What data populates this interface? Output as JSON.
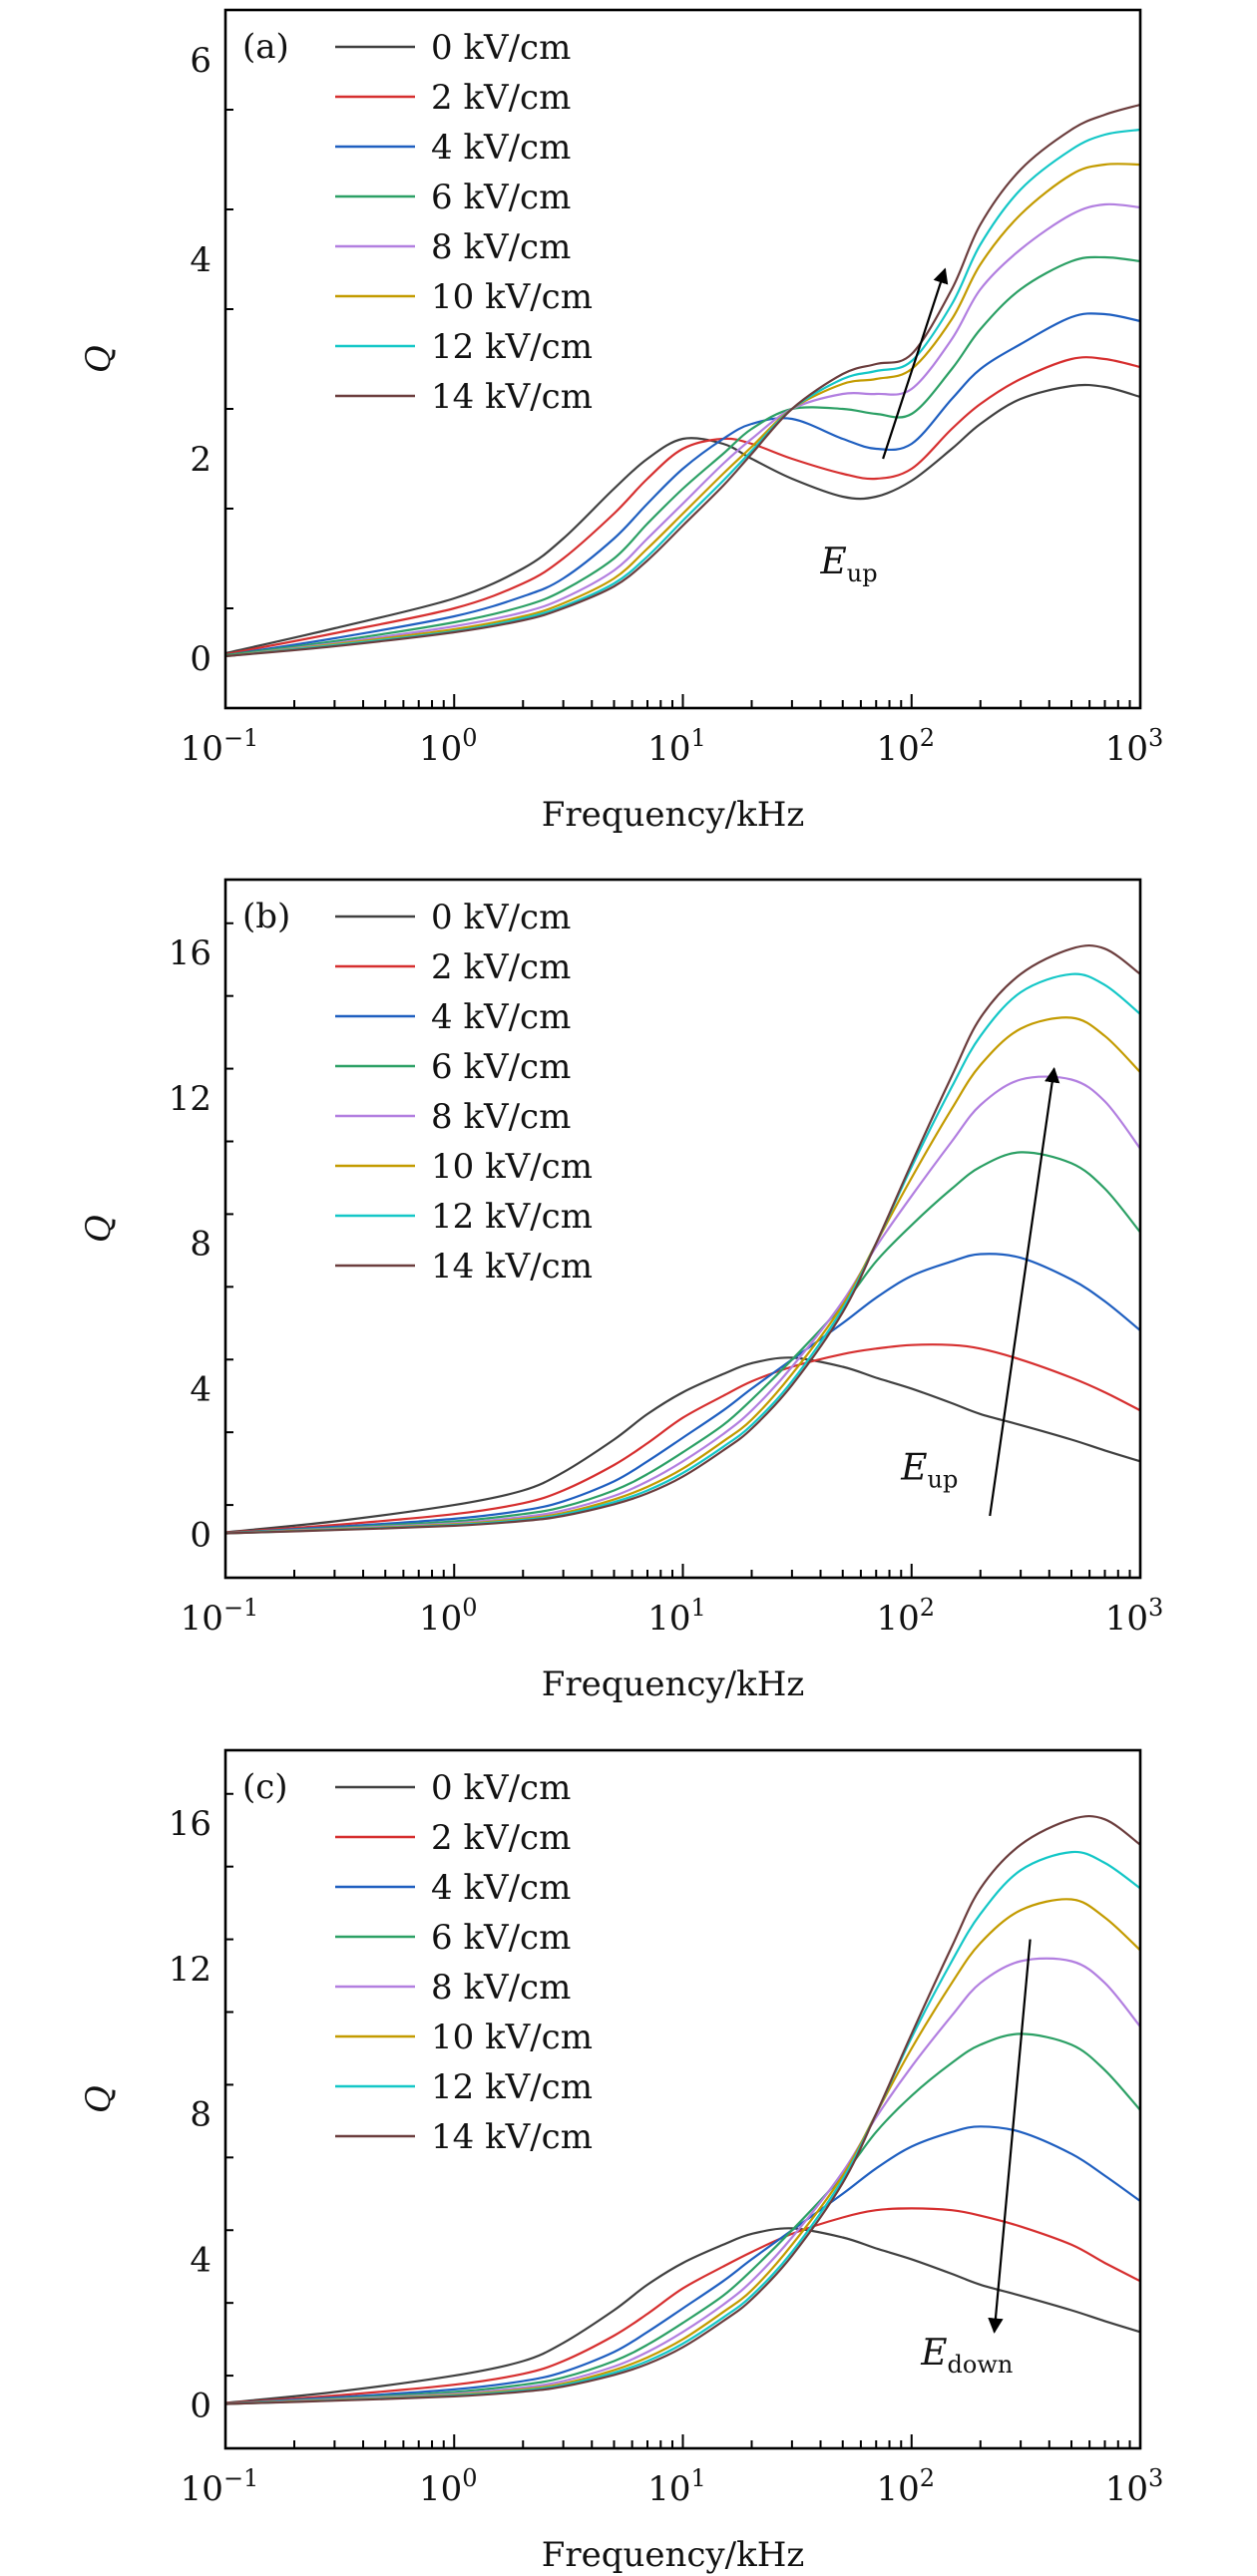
{
  "series_colors": [
    "#404040",
    "#d62f2f",
    "#1f5fc0",
    "#2ca065",
    "#b27fe0",
    "#c39b00",
    "#14c7c7",
    "#6b3d3d"
  ],
  "chart_data": [
    {
      "panel": "(a)",
      "type": "line",
      "xscale": "log",
      "xlim": [
        0.1,
        1000
      ],
      "ylim": [
        -0.5,
        6.5
      ],
      "yticks": [
        0,
        2,
        4,
        6
      ],
      "ytick_labels": [
        "0",
        "2",
        "4",
        "6"
      ],
      "xticks": [
        0.1,
        1,
        10,
        100,
        1000
      ],
      "xtick_labels": [
        [
          "10",
          "−1"
        ],
        [
          "10",
          "0"
        ],
        [
          "10",
          "1"
        ],
        [
          "10",
          "2"
        ],
        [
          "10",
          "3"
        ]
      ],
      "xlabel": "Frequency/kHz",
      "ylabel": "Q",
      "legend_position": "top-left",
      "arrow": {
        "label": "E",
        "sub": "up",
        "direction": "up",
        "from": [
          75,
          2.0
        ],
        "to": [
          140,
          3.9
        ],
        "label_at": [
          40,
          0.85
        ]
      },
      "x": [
        0.1,
        0.3,
        1,
        2,
        3,
        5,
        7,
        10,
        15,
        20,
        30,
        50,
        70,
        100,
        150,
        200,
        300,
        500,
        700,
        1000
      ],
      "series": [
        {
          "name": "0 kV/cm",
          "values": [
            0.05,
            0.3,
            0.6,
            0.9,
            1.2,
            1.7,
            2.0,
            2.2,
            2.15,
            2.0,
            1.8,
            1.62,
            1.62,
            1.78,
            2.1,
            2.35,
            2.6,
            2.73,
            2.72,
            2.62
          ]
        },
        {
          "name": "2 kV/cm",
          "values": [
            0.04,
            0.25,
            0.5,
            0.75,
            1.0,
            1.45,
            1.8,
            2.1,
            2.2,
            2.15,
            2.0,
            1.85,
            1.8,
            1.9,
            2.3,
            2.55,
            2.8,
            3.0,
            3.0,
            2.92
          ]
        },
        {
          "name": "4 kV/cm",
          "values": [
            0.03,
            0.2,
            0.42,
            0.62,
            0.8,
            1.2,
            1.55,
            1.9,
            2.2,
            2.35,
            2.4,
            2.2,
            2.1,
            2.15,
            2.6,
            2.9,
            3.15,
            3.42,
            3.45,
            3.38
          ]
        },
        {
          "name": "6 kV/cm",
          "values": [
            0.03,
            0.17,
            0.36,
            0.52,
            0.68,
            1.0,
            1.35,
            1.7,
            2.05,
            2.3,
            2.5,
            2.5,
            2.45,
            2.45,
            2.9,
            3.3,
            3.7,
            3.98,
            4.02,
            3.98
          ]
        },
        {
          "name": "8 kV/cm",
          "values": [
            0.02,
            0.15,
            0.32,
            0.46,
            0.6,
            0.88,
            1.2,
            1.55,
            1.95,
            2.2,
            2.5,
            2.65,
            2.65,
            2.7,
            3.2,
            3.7,
            4.1,
            4.45,
            4.55,
            4.52
          ]
        },
        {
          "name": "10 kV/cm",
          "values": [
            0.02,
            0.14,
            0.29,
            0.42,
            0.55,
            0.8,
            1.1,
            1.45,
            1.85,
            2.12,
            2.5,
            2.75,
            2.8,
            2.9,
            3.4,
            3.95,
            4.45,
            4.85,
            4.95,
            4.95
          ]
        },
        {
          "name": "12 kV/cm",
          "values": [
            0.02,
            0.13,
            0.27,
            0.4,
            0.52,
            0.75,
            1.02,
            1.38,
            1.78,
            2.08,
            2.5,
            2.8,
            2.88,
            2.98,
            3.55,
            4.15,
            4.7,
            5.1,
            5.25,
            5.3
          ]
        },
        {
          "name": "14 kV/cm",
          "values": [
            0.02,
            0.12,
            0.26,
            0.38,
            0.5,
            0.72,
            0.98,
            1.33,
            1.73,
            2.05,
            2.5,
            2.85,
            2.95,
            3.05,
            3.7,
            4.35,
            4.9,
            5.3,
            5.45,
            5.55
          ]
        }
      ]
    },
    {
      "panel": "(b)",
      "type": "line",
      "xscale": "log",
      "xlim": [
        0.1,
        1000
      ],
      "ylim": [
        -1.2,
        18
      ],
      "yticks": [
        0,
        4,
        8,
        12,
        16
      ],
      "ytick_labels": [
        "0",
        "4",
        "8",
        "12",
        "16"
      ],
      "xticks": [
        0.1,
        1,
        10,
        100,
        1000
      ],
      "xtick_labels": [
        [
          "10",
          "−1"
        ],
        [
          "10",
          "0"
        ],
        [
          "10",
          "1"
        ],
        [
          "10",
          "2"
        ],
        [
          "10",
          "3"
        ]
      ],
      "xlabel": "Frequency/kHz",
      "ylabel": "Q",
      "legend_position": "top-left",
      "arrow": {
        "label": "E",
        "sub": "up",
        "direction": "up",
        "from": [
          220,
          0.5
        ],
        "to": [
          420,
          12.8
        ],
        "label_at": [
          90,
          1.5
        ]
      },
      "x": [
        0.1,
        0.3,
        1,
        2,
        3,
        5,
        7,
        10,
        15,
        20,
        30,
        50,
        70,
        100,
        150,
        200,
        300,
        500,
        700,
        1000
      ],
      "series": [
        {
          "name": "0 kV/cm",
          "values": [
            0.05,
            0.35,
            0.8,
            1.2,
            1.7,
            2.6,
            3.3,
            3.9,
            4.4,
            4.7,
            4.85,
            4.6,
            4.3,
            4.0,
            3.6,
            3.3,
            3.0,
            2.6,
            2.3,
            2.0
          ]
        },
        {
          "name": "2 kV/cm",
          "values": [
            0.04,
            0.25,
            0.55,
            0.85,
            1.2,
            1.9,
            2.5,
            3.2,
            3.8,
            4.2,
            4.6,
            4.95,
            5.1,
            5.2,
            5.2,
            5.1,
            4.8,
            4.3,
            3.9,
            3.4
          ]
        },
        {
          "name": "4 kV/cm",
          "values": [
            0.03,
            0.2,
            0.42,
            0.65,
            0.9,
            1.45,
            2.0,
            2.65,
            3.4,
            4.0,
            4.8,
            5.8,
            6.5,
            7.1,
            7.5,
            7.7,
            7.6,
            7.0,
            6.4,
            5.6
          ]
        },
        {
          "name": "6 kV/cm",
          "values": [
            0.03,
            0.17,
            0.35,
            0.55,
            0.75,
            1.2,
            1.65,
            2.25,
            3.0,
            3.7,
            4.8,
            6.3,
            7.5,
            8.5,
            9.5,
            10.1,
            10.5,
            10.2,
            9.5,
            8.3
          ]
        },
        {
          "name": "8 kV/cm",
          "values": [
            0.02,
            0.15,
            0.3,
            0.47,
            0.65,
            1.05,
            1.45,
            2.0,
            2.75,
            3.4,
            4.6,
            6.4,
            7.9,
            9.3,
            10.8,
            11.8,
            12.5,
            12.5,
            11.9,
            10.6
          ]
        },
        {
          "name": "10 kV/cm",
          "values": [
            0.02,
            0.13,
            0.27,
            0.42,
            0.58,
            0.95,
            1.3,
            1.8,
            2.55,
            3.15,
            4.4,
            6.3,
            8.0,
            9.8,
            11.7,
            12.9,
            13.9,
            14.2,
            13.7,
            12.7
          ]
        },
        {
          "name": "12 kV/cm",
          "values": [
            0.02,
            0.12,
            0.25,
            0.39,
            0.54,
            0.88,
            1.2,
            1.68,
            2.4,
            3.0,
            4.2,
            6.2,
            8.0,
            10.1,
            12.3,
            13.7,
            14.9,
            15.4,
            15.1,
            14.3
          ]
        },
        {
          "name": "14 kV/cm",
          "values": [
            0.02,
            0.11,
            0.23,
            0.36,
            0.5,
            0.82,
            1.12,
            1.58,
            2.3,
            2.9,
            4.1,
            6.1,
            8.0,
            10.2,
            12.6,
            14.2,
            15.4,
            16.1,
            16.1,
            15.4
          ]
        }
      ]
    },
    {
      "panel": "(c)",
      "type": "line",
      "xscale": "log",
      "xlim": [
        0.1,
        1000
      ],
      "ylim": [
        -1.2,
        18
      ],
      "yticks": [
        0,
        4,
        8,
        12,
        16
      ],
      "ytick_labels": [
        "0",
        "4",
        "8",
        "12",
        "16"
      ],
      "xticks": [
        0.1,
        1,
        10,
        100,
        1000
      ],
      "xtick_labels": [
        [
          "10",
          "−1"
        ],
        [
          "10",
          "0"
        ],
        [
          "10",
          "1"
        ],
        [
          "10",
          "2"
        ],
        [
          "10",
          "3"
        ]
      ],
      "xlabel": "Frequency/kHz",
      "ylabel": "Q",
      "legend_position": "top-left",
      "arrow": {
        "label": "E",
        "sub": "down",
        "direction": "down",
        "from": [
          330,
          12.8
        ],
        "to": [
          230,
          2.0
        ],
        "label_at": [
          110,
          1.1
        ]
      },
      "x": [
        0.1,
        0.3,
        1,
        2,
        3,
        5,
        7,
        10,
        15,
        20,
        30,
        50,
        70,
        100,
        150,
        200,
        300,
        500,
        700,
        1000
      ],
      "series": [
        {
          "name": "0 kV/cm",
          "values": [
            0.05,
            0.35,
            0.8,
            1.2,
            1.7,
            2.6,
            3.3,
            3.9,
            4.4,
            4.7,
            4.85,
            4.6,
            4.3,
            4.0,
            3.6,
            3.3,
            3.0,
            2.6,
            2.3,
            2.0
          ]
        },
        {
          "name": "2 kV/cm",
          "values": [
            0.04,
            0.25,
            0.55,
            0.85,
            1.2,
            1.9,
            2.5,
            3.2,
            3.8,
            4.2,
            4.7,
            5.15,
            5.35,
            5.4,
            5.35,
            5.2,
            4.9,
            4.4,
            3.9,
            3.4
          ]
        },
        {
          "name": "4 kV/cm",
          "values": [
            0.03,
            0.2,
            0.42,
            0.65,
            0.9,
            1.45,
            2.0,
            2.65,
            3.4,
            4.0,
            4.8,
            5.8,
            6.5,
            7.1,
            7.5,
            7.65,
            7.5,
            6.9,
            6.3,
            5.6
          ]
        },
        {
          "name": "6 kV/cm",
          "values": [
            0.03,
            0.17,
            0.35,
            0.55,
            0.75,
            1.2,
            1.65,
            2.25,
            3.0,
            3.7,
            4.8,
            6.3,
            7.5,
            8.5,
            9.4,
            9.9,
            10.2,
            9.9,
            9.2,
            8.1
          ]
        },
        {
          "name": "8 kV/cm",
          "values": [
            0.02,
            0.15,
            0.3,
            0.47,
            0.65,
            1.05,
            1.45,
            2.0,
            2.75,
            3.4,
            4.6,
            6.4,
            7.9,
            9.3,
            10.7,
            11.6,
            12.2,
            12.2,
            11.6,
            10.4
          ]
        },
        {
          "name": "10 kV/cm",
          "values": [
            0.02,
            0.13,
            0.27,
            0.42,
            0.58,
            0.95,
            1.3,
            1.8,
            2.55,
            3.15,
            4.4,
            6.3,
            8.0,
            9.8,
            11.6,
            12.7,
            13.6,
            13.9,
            13.4,
            12.5
          ]
        },
        {
          "name": "12 kV/cm",
          "values": [
            0.02,
            0.12,
            0.25,
            0.39,
            0.54,
            0.88,
            1.2,
            1.68,
            2.4,
            3.0,
            4.2,
            6.2,
            8.0,
            10.1,
            12.2,
            13.5,
            14.7,
            15.2,
            14.9,
            14.2
          ]
        },
        {
          "name": "14 kV/cm",
          "values": [
            0.02,
            0.11,
            0.23,
            0.36,
            0.5,
            0.82,
            1.12,
            1.58,
            2.3,
            2.9,
            4.1,
            6.1,
            8.0,
            10.2,
            12.6,
            14.2,
            15.4,
            16.1,
            16.1,
            15.4
          ]
        }
      ]
    }
  ]
}
